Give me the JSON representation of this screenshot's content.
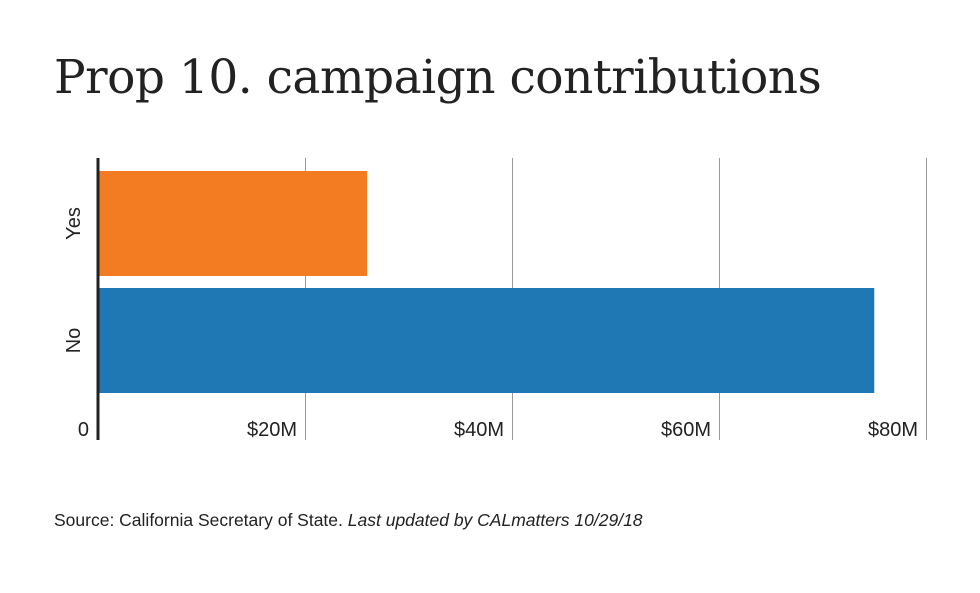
{
  "chart_data": {
    "type": "bar",
    "orientation": "horizontal",
    "title": "Prop 10. campaign contributions",
    "categories": [
      "Yes",
      "No"
    ],
    "values": [
      26,
      75
    ],
    "unit": "USD millions",
    "colors": [
      "#f37b21",
      "#1f77b4"
    ],
    "xlim": [
      0,
      80
    ],
    "xticks": [
      0,
      20,
      40,
      60,
      80
    ],
    "xtick_labels": [
      "0",
      "$20M",
      "$40M",
      "$60M",
      "$80M"
    ],
    "xlabel": "",
    "ylabel": "",
    "grid": "vertical",
    "legend": "none"
  },
  "footer": {
    "source": "Source: California Secretary of State.",
    "updated": "Last updated by CALmatters 10/29/18"
  }
}
